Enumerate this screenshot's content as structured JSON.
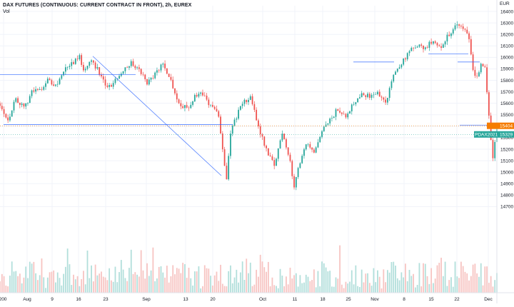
{
  "header": {
    "title": "DAX FUTURES (CONTINUOUS: CURRENT CONTRACT IN FRONT), 2h, EUREX",
    "volume_label": "Vol",
    "currency": "EUR"
  },
  "price_labels": {
    "last": "15404",
    "prev": "",
    "previous_label": "PDAX2021",
    "previous_value": "15329"
  },
  "colors": {
    "up": "#26a69a",
    "down": "#ef5350",
    "up_volume": "#b2dfdb",
    "down_volume": "#f7c4c2",
    "drawing_line": "#2962ff",
    "last_price_tag": "#f57c00",
    "prev_price_tag": "#26a69a"
  },
  "chart_data": {
    "type": "candlestick",
    "title": "DAX FUTURES (CONTINUOUS: CURRENT CONTRACT IN FRONT), 2h, EUREX",
    "ylim": [
      13950,
      16450
    ],
    "y_ticks": [
      16400,
      16300,
      16200,
      16100,
      16000,
      15900,
      15800,
      15700,
      15600,
      15500,
      15400,
      15300,
      15200,
      15100,
      15000,
      14900,
      14800,
      14700
    ],
    "x_ticks": [
      "200",
      "Aug",
      "9",
      "16",
      "23",
      "Sep",
      "13",
      "20",
      "Oct",
      "11",
      "18",
      "25",
      "Nov",
      "8",
      "15",
      "22",
      "Dec"
    ],
    "price_path": [
      [
        0,
        15600
      ],
      [
        4,
        15450
      ],
      [
        8,
        15650
      ],
      [
        12,
        15550
      ],
      [
        16,
        15700
      ],
      [
        20,
        15720
      ],
      [
        24,
        15800
      ],
      [
        28,
        15750
      ],
      [
        32,
        15880
      ],
      [
        36,
        15950
      ],
      [
        40,
        16000
      ],
      [
        42,
        15900
      ],
      [
        46,
        15980
      ],
      [
        50,
        15870
      ],
      [
        54,
        15720
      ],
      [
        58,
        15800
      ],
      [
        62,
        15900
      ],
      [
        66,
        15950
      ],
      [
        70,
        15890
      ],
      [
        74,
        15780
      ],
      [
        78,
        15850
      ],
      [
        82,
        15950
      ],
      [
        86,
        15800
      ],
      [
        90,
        15600
      ],
      [
        94,
        15550
      ],
      [
        98,
        15650
      ],
      [
        102,
        15680
      ],
      [
        106,
        15580
      ],
      [
        110,
        15500
      ],
      [
        112,
        15200
      ],
      [
        114,
        14950
      ],
      [
        116,
        15350
      ],
      [
        118,
        15450
      ],
      [
        122,
        15600
      ],
      [
        126,
        15650
      ],
      [
        130,
        15400
      ],
      [
        134,
        15200
      ],
      [
        138,
        15050
      ],
      [
        142,
        15350
      ],
      [
        146,
        15100
      ],
      [
        148,
        14850
      ],
      [
        150,
        15050
      ],
      [
        154,
        15250
      ],
      [
        158,
        15150
      ],
      [
        162,
        15350
      ],
      [
        166,
        15450
      ],
      [
        170,
        15550
      ],
      [
        174,
        15500
      ],
      [
        178,
        15600
      ],
      [
        182,
        15700
      ],
      [
        186,
        15650
      ],
      [
        190,
        15700
      ],
      [
        194,
        15600
      ],
      [
        198,
        15850
      ],
      [
        202,
        15950
      ],
      [
        206,
        16050
      ],
      [
        210,
        16100
      ],
      [
        214,
        16080
      ],
      [
        218,
        16150
      ],
      [
        222,
        16100
      ],
      [
        226,
        16200
      ],
      [
        230,
        16280
      ],
      [
        234,
        16250
      ],
      [
        236,
        16150
      ],
      [
        238,
        15900
      ],
      [
        240,
        15820
      ],
      [
        242,
        15950
      ],
      [
        244,
        15920
      ],
      [
        246,
        15500
      ],
      [
        248,
        15100
      ],
      [
        250,
        15400
      ]
    ],
    "horizontal_levels": [
      15850,
      15415,
      15960,
      16030,
      15960,
      15410
    ],
    "last_price": 15404,
    "previous_close": 15329
  }
}
